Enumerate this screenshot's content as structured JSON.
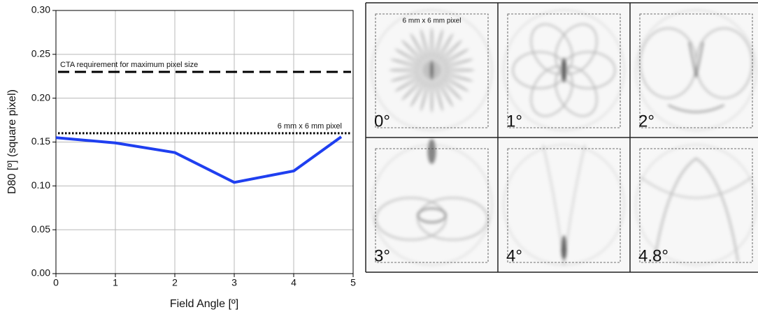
{
  "chart_data": {
    "type": "line",
    "x_label": "Field Angle [º]",
    "y_label": "D80 [º] (square pixel)",
    "x": [
      0,
      1,
      2,
      3,
      4,
      4.8
    ],
    "series": [
      {
        "name": "D80",
        "color": "#1f3ff0",
        "values": [
          0.155,
          0.149,
          0.138,
          0.104,
          0.117,
          0.156
        ]
      }
    ],
    "xlim": [
      0,
      5
    ],
    "xticks": [
      0,
      1,
      2,
      3,
      4,
      5
    ],
    "ylim": [
      0,
      0.3
    ],
    "yticks": [
      {
        "value": 0,
        "label": "0.00"
      },
      {
        "value": 0.05,
        "label": "0.05"
      },
      {
        "value": 0.1,
        "label": "0.10"
      },
      {
        "value": 0.15,
        "label": "0.15"
      },
      {
        "value": 0.2,
        "label": "0.20"
      },
      {
        "value": 0.25,
        "label": "0.25"
      },
      {
        "value": 0.3,
        "label": "0.30"
      }
    ],
    "grid": true,
    "reference_lines": [
      {
        "label": "CTA requirement for maximum pixel size",
        "value": 0.23,
        "style": "dashed"
      },
      {
        "label": "6 mm x 6 mm pixel",
        "value": 0.16,
        "style": "dotted"
      }
    ]
  },
  "image_panels": {
    "note": "6 mm x 6 mm pixel",
    "labels": [
      "0°",
      "1°",
      "2°",
      "3°",
      "4°",
      "4.8°"
    ]
  }
}
